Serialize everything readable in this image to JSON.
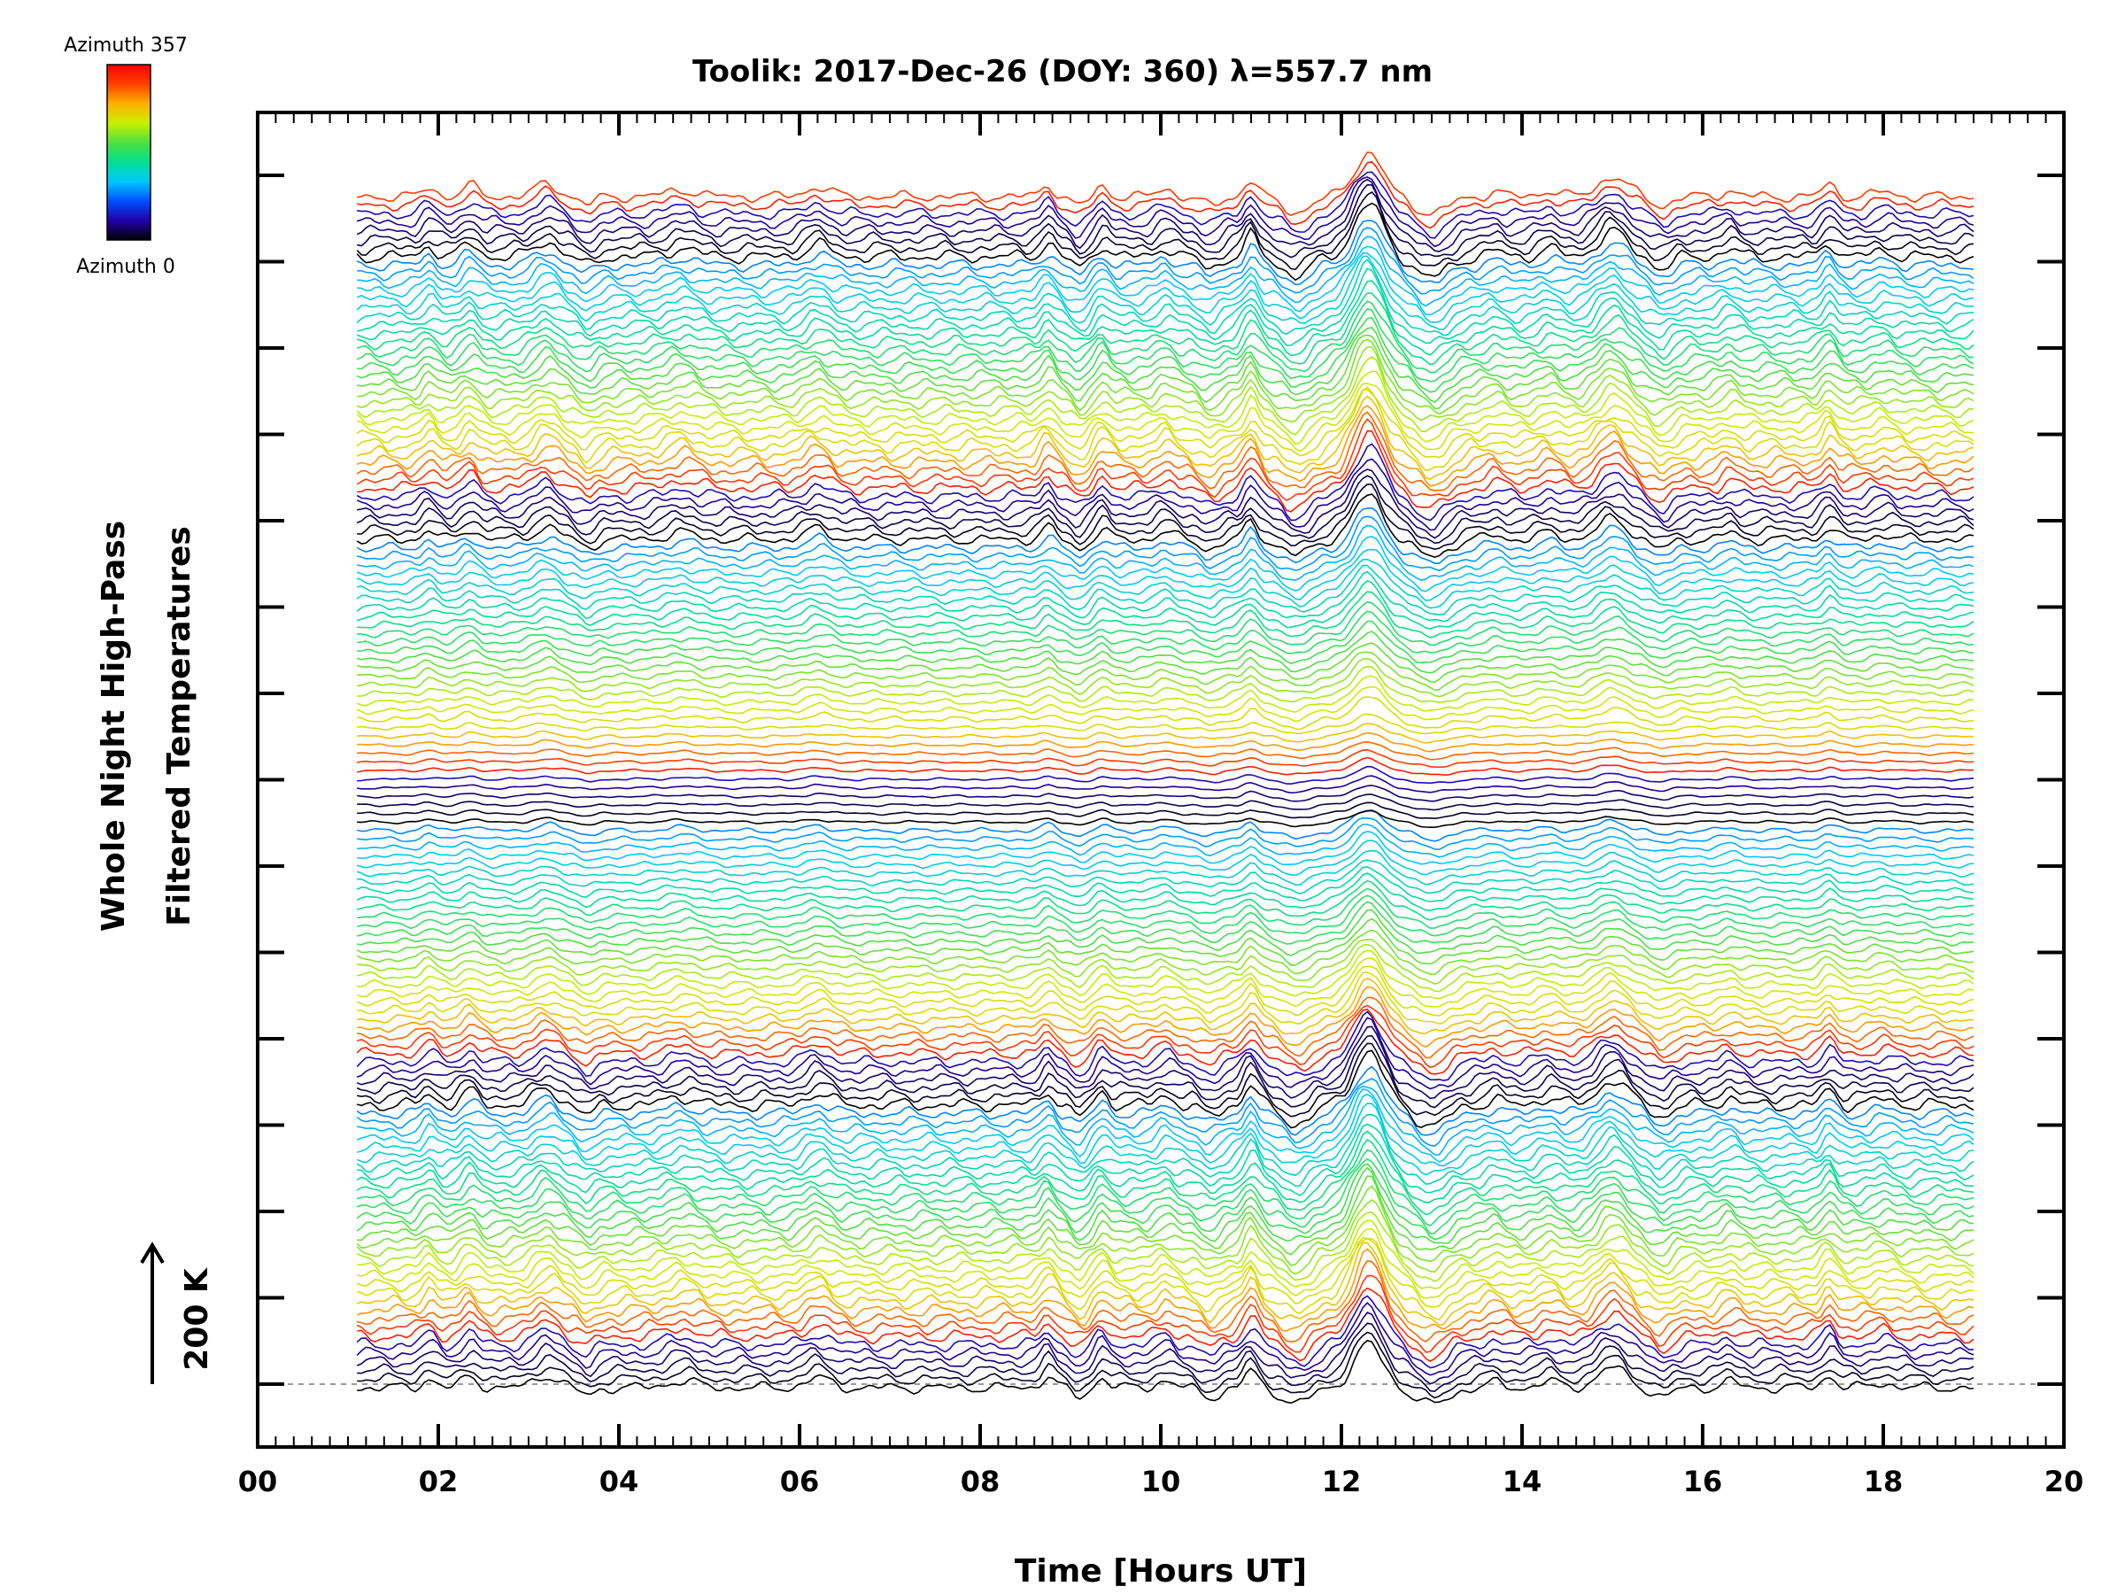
{
  "chart_data": {
    "type": "line",
    "title": "Toolik: 2017-Dec-26 (DOY: 360) λ=557.7 nm",
    "xlabel": "Time [Hours UT]",
    "ylabel_line1": "Whole Night High-Pass",
    "ylabel_line2": "Filtered Temperatures",
    "scale_label": "200 K",
    "xlim": [
      0,
      20
    ],
    "x_ticks": [
      "00",
      "02",
      "04",
      "06",
      "08",
      "10",
      "12",
      "14",
      "16",
      "18",
      "20"
    ],
    "data_range_hours": [
      1.1,
      19.0
    ],
    "colorbar": {
      "top_label": "Azimuth 357",
      "bottom_label": "Azimuth 0",
      "colors": [
        "#000000",
        "#2200aa",
        "#0050ff",
        "#00c8ff",
        "#00e090",
        "#50e040",
        "#c8f000",
        "#ffb000",
        "#ff4000",
        "#ff0000"
      ]
    },
    "series_count": 140,
    "features": [
      {
        "t": 0.9,
        "w": 1.0,
        "a": 0
      },
      {
        "t": 1.9,
        "w": 0.1,
        "a": 30
      },
      {
        "t": 2.35,
        "w": 0.12,
        "a": 35
      },
      {
        "t": 3.2,
        "w": 0.18,
        "a": 40
      },
      {
        "t": 3.65,
        "w": 0.12,
        "a": -25
      },
      {
        "t": 4.7,
        "w": 0.22,
        "a": 22
      },
      {
        "t": 6.2,
        "w": 0.18,
        "a": 32
      },
      {
        "t": 8.75,
        "w": 0.1,
        "a": 38
      },
      {
        "t": 9.1,
        "w": 0.12,
        "a": -30
      },
      {
        "t": 9.35,
        "w": 0.1,
        "a": 32
      },
      {
        "t": 10.05,
        "w": 0.12,
        "a": 25
      },
      {
        "t": 10.55,
        "w": 0.15,
        "a": -30
      },
      {
        "t": 11.0,
        "w": 0.1,
        "a": 55
      },
      {
        "t": 11.5,
        "w": 0.22,
        "a": -50
      },
      {
        "t": 12.3,
        "w": 0.22,
        "a": 140
      },
      {
        "t": 13.0,
        "w": 0.25,
        "a": -55
      },
      {
        "t": 13.7,
        "w": 0.12,
        "a": 15
      },
      {
        "t": 14.3,
        "w": 0.15,
        "a": 20
      },
      {
        "t": 15.0,
        "w": 0.22,
        "a": 65
      },
      {
        "t": 15.55,
        "w": 0.15,
        "a": -30
      },
      {
        "t": 16.3,
        "w": 0.12,
        "a": 20
      },
      {
        "t": 17.4,
        "w": 0.1,
        "a": 40
      },
      {
        "t": 18.0,
        "w": 0.15,
        "a": 15
      }
    ]
  }
}
